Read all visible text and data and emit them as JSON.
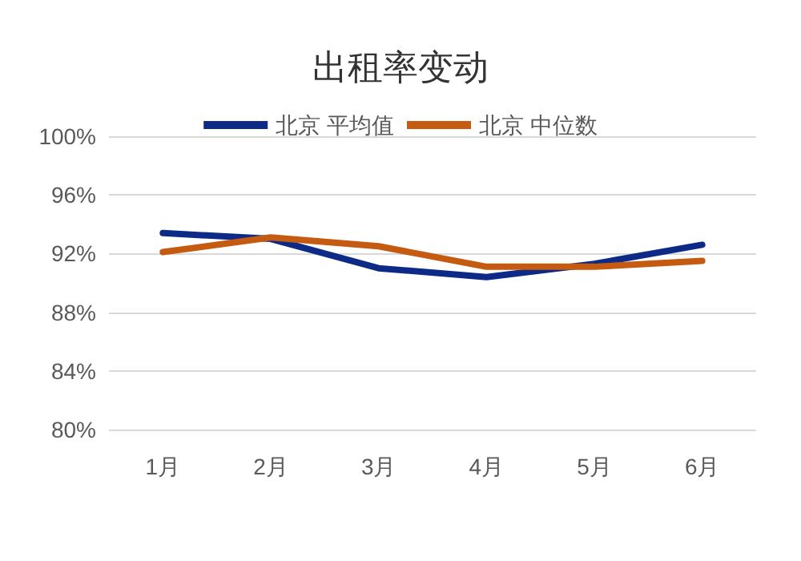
{
  "chart_data": {
    "type": "line",
    "title": "出租率变动",
    "categories": [
      "1月",
      "2月",
      "3月",
      "4月",
      "5月",
      "6月"
    ],
    "series": [
      {
        "name": "北京 平均值",
        "color": "#0d2a86",
        "values": [
          93.4,
          93.0,
          91.0,
          90.4,
          91.3,
          92.6
        ]
      },
      {
        "name": "北京 中位数",
        "color": "#c55a11",
        "values": [
          92.1,
          93.1,
          92.5,
          91.1,
          91.1,
          91.5
        ]
      }
    ],
    "ylim": [
      80,
      100
    ],
    "yticks": [
      {
        "value": 80,
        "label": "80%"
      },
      {
        "value": 84,
        "label": "84%"
      },
      {
        "value": 88,
        "label": "88%"
      },
      {
        "value": 92,
        "label": "92%"
      },
      {
        "value": 96,
        "label": "96%"
      },
      {
        "value": 100,
        "label": "100%"
      }
    ],
    "grid": "y",
    "legend": "top",
    "marker": "none",
    "line_style": "solid"
  }
}
